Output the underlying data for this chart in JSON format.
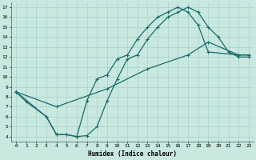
{
  "xlabel": "Humidex (Indice chaleur)",
  "bg_color": "#c8e8e0",
  "grid_color": "#a8d0c8",
  "line_color": "#1a6b6b",
  "xlim": [
    -0.5,
    23.5
  ],
  "ylim": [
    3.5,
    17.5
  ],
  "xticks": [
    0,
    1,
    2,
    3,
    4,
    5,
    6,
    7,
    8,
    9,
    10,
    11,
    12,
    13,
    14,
    15,
    16,
    17,
    18,
    19,
    20,
    21,
    22,
    23
  ],
  "yticks": [
    4,
    5,
    6,
    7,
    8,
    9,
    10,
    11,
    12,
    13,
    14,
    15,
    16,
    17
  ],
  "line1_x": [
    0,
    1,
    3,
    4,
    5,
    6,
    7,
    8,
    9,
    10,
    11,
    12,
    13,
    14,
    15,
    16,
    17,
    18,
    19,
    20,
    21,
    22,
    23
  ],
  "line1_y": [
    8.5,
    7.5,
    6.0,
    4.2,
    4.2,
    4.0,
    4.1,
    5.0,
    7.6,
    9.8,
    11.8,
    12.2,
    13.8,
    15.0,
    16.0,
    16.5,
    17.0,
    16.5,
    15.0,
    14.0,
    12.5,
    12.0,
    12.0
  ],
  "line2_x": [
    0,
    3,
    4,
    5,
    6,
    7,
    8,
    9,
    10,
    11,
    12,
    13,
    14,
    15,
    16,
    17,
    18,
    19,
    22,
    23
  ],
  "line2_y": [
    8.5,
    6.0,
    4.2,
    4.2,
    4.0,
    7.6,
    9.8,
    10.2,
    11.8,
    12.2,
    13.8,
    15.0,
    16.0,
    16.5,
    17.0,
    16.5,
    15.2,
    12.5,
    12.2,
    12.2
  ],
  "line3_x": [
    0,
    4,
    9,
    13,
    17,
    19,
    22,
    23
  ],
  "line3_y": [
    8.5,
    7.0,
    8.8,
    10.8,
    12.2,
    13.5,
    12.2,
    12.2
  ],
  "markersize": 3,
  "linewidth": 0.9
}
